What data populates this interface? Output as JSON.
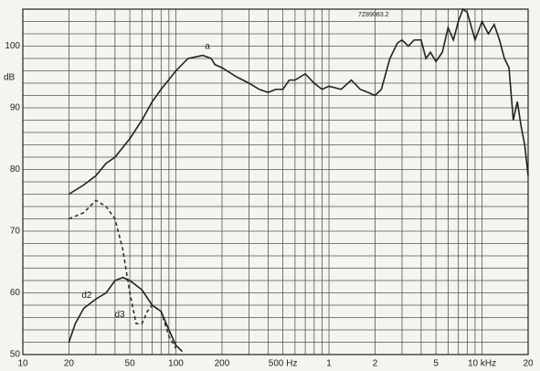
{
  "chart_data": {
    "type": "line",
    "annotation": "7Z89083.2",
    "ylabel": "dB",
    "xscale": "log",
    "xlim": [
      10,
      20000
    ],
    "ylim": [
      50,
      106
    ],
    "xticks": [
      10,
      20,
      50,
      100,
      200,
      {
        "value": 500,
        "label": "500 Hz"
      },
      {
        "value": 1000,
        "label": "1"
      },
      {
        "value": 2000,
        "label": "2"
      },
      {
        "value": 5000,
        "label": "5"
      },
      {
        "value": 10000,
        "label": "10 kHz"
      },
      {
        "value": 20000,
        "label": "20"
      }
    ],
    "yticks": [
      50,
      60,
      70,
      80,
      90,
      100
    ],
    "xgrid": [
      10,
      20,
      30,
      40,
      50,
      60,
      70,
      80,
      90,
      100,
      200,
      300,
      400,
      500,
      600,
      700,
      800,
      900,
      1000,
      2000,
      3000,
      4000,
      5000,
      6000,
      7000,
      8000,
      9000,
      10000,
      20000
    ],
    "ygrid": [
      50,
      52,
      54,
      56,
      58,
      60,
      62,
      64,
      66,
      68,
      70,
      72,
      74,
      76,
      78,
      80,
      82,
      84,
      86,
      88,
      90,
      92,
      94,
      96,
      98,
      100,
      102,
      104,
      106
    ],
    "series": [
      {
        "name": "a",
        "color": "#222",
        "dash": false,
        "x": [
          20,
          25,
          30,
          35,
          40,
          50,
          60,
          70,
          80,
          100,
          120,
          150,
          170,
          180,
          200,
          250,
          300,
          350,
          400,
          450,
          500,
          550,
          600,
          700,
          800,
          900,
          1000,
          1200,
          1400,
          1600,
          1800,
          2000,
          2200,
          2500,
          2800,
          3000,
          3300,
          3600,
          4000,
          4300,
          4600,
          5000,
          5500,
          6000,
          6500,
          7000,
          7500,
          8000,
          9000,
          10000,
          11000,
          12000,
          13000,
          14000,
          15000,
          16000,
          17000,
          18000,
          19000,
          20000
        ],
        "values": [
          76,
          77.5,
          79,
          81,
          82,
          85,
          88,
          91,
          93,
          96,
          98,
          98.5,
          98,
          97,
          96.5,
          95,
          94,
          93,
          92.5,
          93,
          93,
          94.5,
          94.5,
          95.5,
          94,
          93,
          93.5,
          93,
          94.5,
          93,
          92.5,
          92,
          93,
          98,
          100.5,
          101,
          100,
          101,
          101,
          98,
          99,
          97.5,
          99,
          103,
          101,
          104,
          106,
          105.5,
          101,
          104,
          102,
          103.5,
          101,
          98,
          96.5,
          88,
          91,
          87,
          84,
          79
        ]
      },
      {
        "name": "d3",
        "color": "#333",
        "dash": true,
        "x": [
          20,
          25,
          30,
          35,
          40,
          45,
          50,
          55,
          60,
          65,
          70,
          80,
          90,
          100
        ],
        "values": [
          72,
          73,
          75,
          74,
          72,
          67,
          60,
          55,
          55,
          57,
          58,
          57,
          53,
          51
        ]
      },
      {
        "name": "d2",
        "color": "#222",
        "dash": false,
        "x": [
          20,
          22,
          25,
          30,
          35,
          40,
          45,
          50,
          60,
          70,
          80,
          90,
          100,
          110
        ],
        "values": [
          52,
          55,
          57.5,
          59,
          60,
          62,
          62.5,
          62,
          60.5,
          58,
          57,
          54,
          51.5,
          50.5
        ]
      }
    ]
  }
}
